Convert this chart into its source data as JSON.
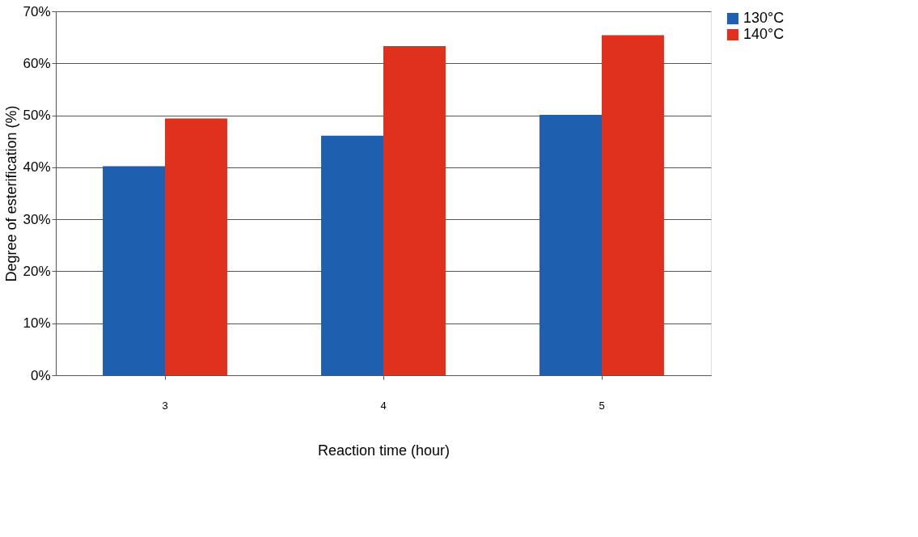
{
  "chart_data": {
    "type": "bar",
    "xlabel": "Reaction time (hour)",
    "ylabel": "Degree of esterification (%)",
    "categories": [
      "3",
      "4",
      "5"
    ],
    "series": [
      {
        "name": "130°C",
        "color": "#1f5faf",
        "values": [
          40.2,
          46.1,
          50.1
        ]
      },
      {
        "name": "140°C",
        "color": "#e0301e",
        "values": [
          49.4,
          63.3,
          65.4
        ]
      }
    ],
    "ylim": [
      0,
      70
    ],
    "yticks": [
      {
        "value": 0,
        "label": "0%"
      },
      {
        "value": 10,
        "label": "10%"
      },
      {
        "value": 20,
        "label": "20%"
      },
      {
        "value": 30,
        "label": "30%"
      },
      {
        "value": 40,
        "label": "40%"
      },
      {
        "value": 50,
        "label": "50%"
      },
      {
        "value": 60,
        "label": "60%"
      },
      {
        "value": 70,
        "label": "70%"
      }
    ],
    "grid": "y",
    "legend": "right"
  }
}
